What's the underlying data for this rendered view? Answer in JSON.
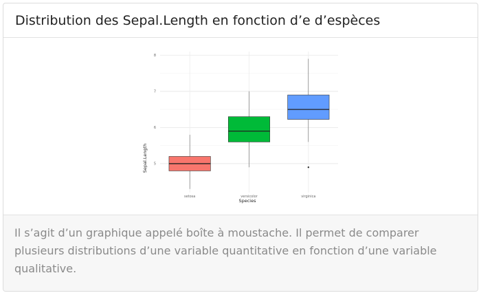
{
  "card": {
    "title": "Distribution des Sepal.Length en fonction d’e d’espèces",
    "description": "Il s’agit d’un graphique appelé boîte à moustache. Il permet de comparer plusieurs distributions d’une variable quantitative en fonction d’une variable qualitative."
  },
  "chart_data": {
    "type": "boxplot",
    "xlabel": "Species",
    "ylabel": "Sepal.Length",
    "ylim": [
      4.2,
      8.1
    ],
    "yticks": [
      5,
      6,
      7,
      8
    ],
    "grid": true,
    "categories": [
      "setosa",
      "versicolor",
      "virginica"
    ],
    "boxes": [
      {
        "category": "setosa",
        "min": 4.3,
        "q1": 4.8,
        "median": 5.0,
        "q3": 5.2,
        "max": 5.8,
        "outliers": [],
        "color": "#F8766D"
      },
      {
        "category": "versicolor",
        "min": 4.9,
        "q1": 5.6,
        "median": 5.9,
        "q3": 6.3,
        "max": 7.0,
        "outliers": [],
        "color": "#00BA38"
      },
      {
        "category": "virginica",
        "min": 5.6,
        "q1": 6.225,
        "median": 6.5,
        "q3": 6.9,
        "max": 7.9,
        "outliers": [
          4.9
        ],
        "color": "#619CFF"
      }
    ]
  }
}
